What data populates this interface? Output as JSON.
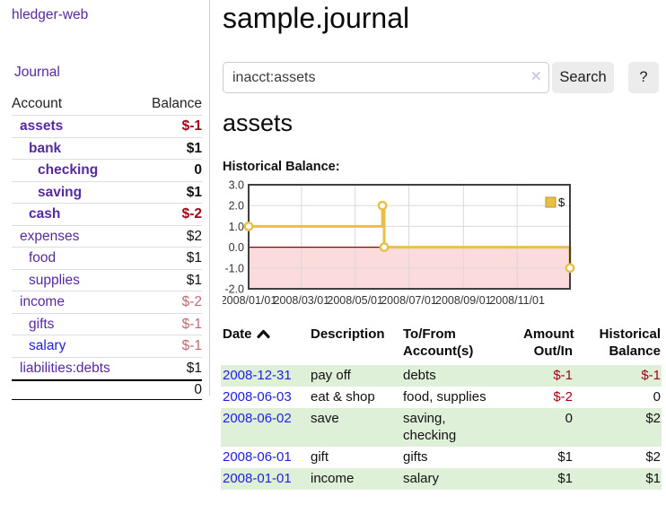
{
  "sidebar": {
    "brand": "hledger-web",
    "nav": [
      {
        "label": "Journal"
      }
    ],
    "table_header": {
      "account": "Account",
      "balance": "Balance"
    },
    "accounts": [
      {
        "name": "assets",
        "balance": "$-1",
        "level": 1,
        "emph": true,
        "balance_tone": "neg-strong"
      },
      {
        "name": "bank",
        "balance": "$1",
        "level": 2,
        "emph": true,
        "balance_tone": "normal"
      },
      {
        "name": "checking",
        "balance": "0",
        "level": 3,
        "emph": true,
        "balance_tone": "normal"
      },
      {
        "name": "saving",
        "balance": "$1",
        "level": 3,
        "emph": true,
        "balance_tone": "normal"
      },
      {
        "name": "cash",
        "balance": "$-2",
        "level": 2,
        "emph": true,
        "balance_tone": "neg-strong"
      },
      {
        "name": "expenses",
        "balance": "$2",
        "level": 1,
        "emph": false,
        "balance_tone": "normal"
      },
      {
        "name": "food",
        "balance": "$1",
        "level": 2,
        "emph": false,
        "balance_tone": "normal"
      },
      {
        "name": "supplies",
        "balance": "$1",
        "level": 2,
        "emph": false,
        "balance_tone": "normal"
      },
      {
        "name": "income",
        "balance": "$-2",
        "level": 1,
        "emph": false,
        "balance_tone": "neg-soft"
      },
      {
        "name": "gifts",
        "balance": "$-1",
        "level": 2,
        "emph": false,
        "balance_tone": "neg-soft"
      },
      {
        "name": "salary",
        "balance": "$-1",
        "level": 2,
        "emph": false,
        "balance_tone": "neg-soft",
        "link_tone": "blue"
      },
      {
        "name": "liabilities:debts",
        "balance": "$1",
        "level": 1,
        "emph": false,
        "balance_tone": "normal"
      }
    ],
    "total": "0"
  },
  "main": {
    "title": "sample.journal",
    "search": {
      "value": "inacct:assets",
      "clear_icon": "✕",
      "button_label": "Search",
      "help_label": "?"
    },
    "account_heading": "assets",
    "chart_label": "Historical Balance:"
  },
  "chart_data": {
    "type": "line",
    "step": true,
    "title": "Historical Balance",
    "series": [
      {
        "name": "$",
        "points": [
          [
            "2008/01/01",
            1
          ],
          [
            "2008/06/01",
            2
          ],
          [
            "2008/06/03",
            0
          ],
          [
            "2008/12/31",
            -1
          ]
        ]
      }
    ],
    "xlim": [
      "2008/01/01",
      "2008/12/31"
    ],
    "ylim": [
      -2,
      3
    ],
    "x_ticks": [
      "2008/01/01",
      "2008/03/01",
      "2008/05/01",
      "2008/07/01",
      "2008/09/01",
      "2008/11/01"
    ],
    "y_ticks": [
      "3.0",
      "2.0",
      "1.0",
      "0.0",
      "-1.0",
      "-2.0"
    ],
    "legend": {
      "label": "$",
      "position": "top-right"
    },
    "grid": true,
    "colors": {
      "line": "#e9c045",
      "marker_fill": "#ffffff",
      "negative_region": "#fbdbdb",
      "zero_line": "#8f0000",
      "frame": "#3f3f3f",
      "grid": "#d9d9d9",
      "legend_border": "#b8942f",
      "tick_text": "#333333"
    }
  },
  "register_table": {
    "columns": [
      "Date",
      "Description",
      "To/From Account(s)",
      "Amount Out/In",
      "Historical Balance"
    ],
    "sort": {
      "column": "Date",
      "direction": "asc"
    },
    "rows": [
      {
        "date": "2008-12-31",
        "description": "pay off",
        "accounts": "debts",
        "amount": "$-1",
        "balance": "$-1"
      },
      {
        "date": "2008-06-03",
        "description": "eat & shop",
        "accounts": "food, supplies",
        "amount": "$-2",
        "balance": "0"
      },
      {
        "date": "2008-06-02",
        "description": "save",
        "accounts": "saving,\nchecking",
        "amount": "0",
        "balance": "$2"
      },
      {
        "date": "2008-06-01",
        "description": "gift",
        "accounts": "gifts",
        "amount": "$1",
        "balance": "$2"
      },
      {
        "date": "2008-01-01",
        "description": "income",
        "accounts": "salary",
        "amount": "$1",
        "balance": "$1"
      }
    ]
  }
}
